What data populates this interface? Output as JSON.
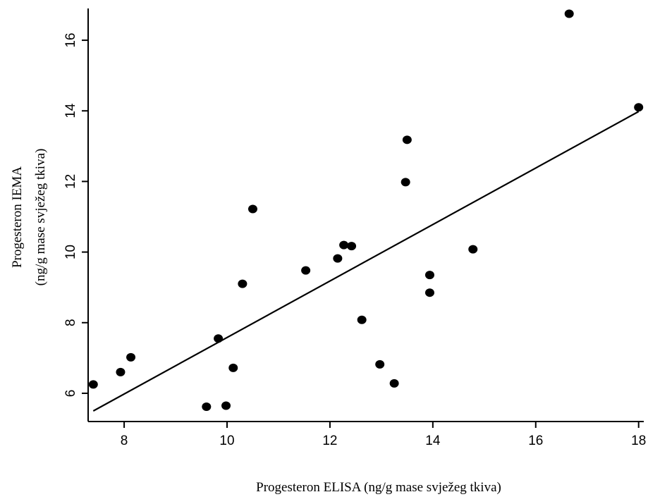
{
  "chart_data": {
    "type": "scatter",
    "title": "",
    "xlabel": "Progesteron ELISA (ng/g mase svježeg tkiva)",
    "ylabel_line1": "Progesteron IEMA",
    "ylabel_line2": "(ng/g mase svježeg tkiva)",
    "xlim": [
      7.3,
      18.1
    ],
    "ylim": [
      5.2,
      16.9
    ],
    "xticks": [
      8,
      10,
      12,
      14,
      16,
      18
    ],
    "yticks": [
      6,
      8,
      10,
      12,
      14,
      16
    ],
    "grid": false,
    "legend": "none",
    "series": [
      {
        "points": [
          {
            "x": 7.4,
            "y": 6.25
          },
          {
            "x": 7.93,
            "y": 6.6
          },
          {
            "x": 8.13,
            "y": 7.02
          },
          {
            "x": 9.6,
            "y": 5.62
          },
          {
            "x": 9.83,
            "y": 7.55
          },
          {
            "x": 9.98,
            "y": 5.65
          },
          {
            "x": 10.12,
            "y": 6.72
          },
          {
            "x": 10.3,
            "y": 9.1
          },
          {
            "x": 10.5,
            "y": 11.22
          },
          {
            "x": 11.53,
            "y": 9.48
          },
          {
            "x": 12.15,
            "y": 9.82
          },
          {
            "x": 12.27,
            "y": 10.2
          },
          {
            "x": 12.42,
            "y": 10.17
          },
          {
            "x": 12.62,
            "y": 8.08
          },
          {
            "x": 12.97,
            "y": 6.82
          },
          {
            "x": 13.25,
            "y": 6.28
          },
          {
            "x": 13.47,
            "y": 11.98
          },
          {
            "x": 13.5,
            "y": 13.18
          },
          {
            "x": 13.94,
            "y": 9.35
          },
          {
            "x": 13.94,
            "y": 8.85
          },
          {
            "x": 14.78,
            "y": 10.08
          },
          {
            "x": 16.65,
            "y": 16.75
          },
          {
            "x": 18.0,
            "y": 14.1
          }
        ]
      }
    ],
    "fit_line": {
      "x": [
        7.4,
        18.0
      ],
      "y": [
        5.5,
        13.98
      ]
    }
  }
}
